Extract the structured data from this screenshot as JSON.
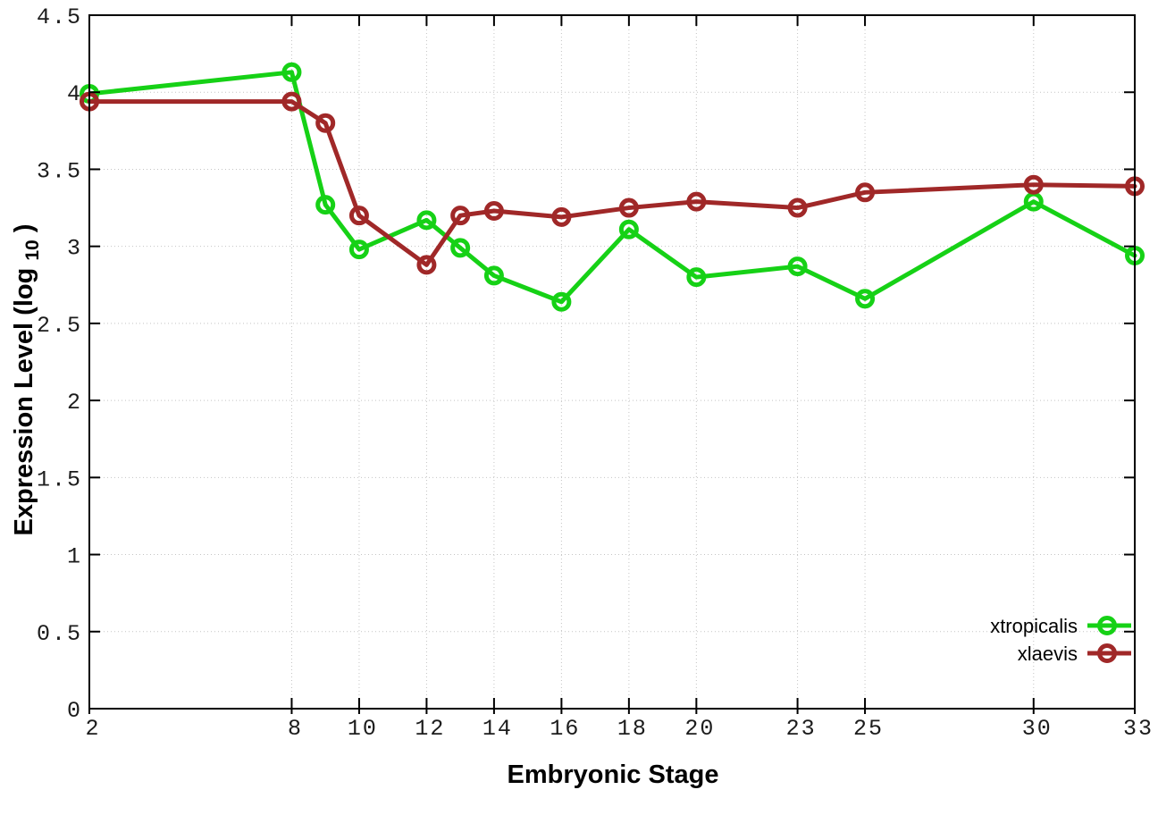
{
  "figure": {
    "background": "#ffffff",
    "border_color": "#000000",
    "grid_color": "#c4c4c4"
  },
  "chart_data": {
    "type": "line",
    "title": "",
    "xlabel": "Embryonic Stage",
    "ylabel": "Expression Level (log10)",
    "ylabel_parts": {
      "before": "Expression Level (log",
      "subscript": "10",
      "after": ")"
    },
    "xlim": [
      2,
      33
    ],
    "ylim": [
      0,
      4.5
    ],
    "grid": true,
    "legend_position": "bottom-right",
    "x_ticks": [
      2,
      8,
      10,
      12,
      14,
      16,
      18,
      20,
      23,
      25,
      30,
      33
    ],
    "x_tick_labels": [
      "2",
      "8",
      "10",
      "12",
      "14",
      "16",
      "18",
      "20",
      "23",
      "25",
      "30",
      "33"
    ],
    "y_ticks": [
      0,
      0.5,
      1,
      1.5,
      2,
      2.5,
      3,
      3.5,
      4,
      4.5
    ],
    "y_tick_labels": [
      "0",
      "0.5",
      "1",
      "1.5",
      "2",
      "2.5",
      "3",
      "3.5",
      "4",
      "4.5"
    ],
    "x": [
      2,
      8,
      9,
      10,
      12,
      13,
      14,
      16,
      18,
      20,
      23,
      25,
      30,
      33
    ],
    "series": [
      {
        "name": "xtropicalis",
        "color": "#16d116",
        "marker": "open-circle",
        "values": [
          3.99,
          4.13,
          3.27,
          2.98,
          3.17,
          2.99,
          2.81,
          2.64,
          3.11,
          2.8,
          2.87,
          2.66,
          3.29,
          2.94
        ]
      },
      {
        "name": "xlaevis",
        "color": "#a02828",
        "marker": "open-circle",
        "values": [
          3.94,
          3.94,
          3.8,
          3.2,
          2.88,
          3.2,
          3.23,
          3.19,
          3.25,
          3.29,
          3.25,
          3.35,
          3.4,
          3.39
        ]
      }
    ]
  }
}
